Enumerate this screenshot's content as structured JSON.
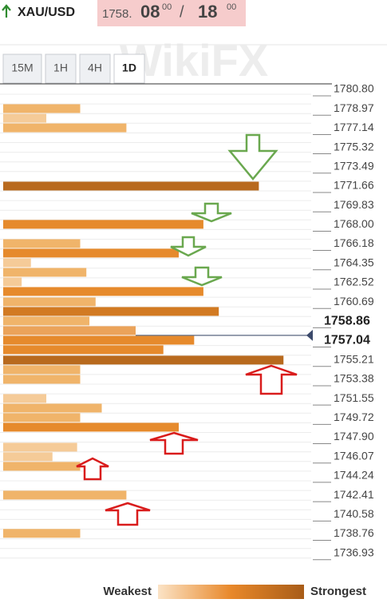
{
  "header": {
    "symbol": "XAU/USD",
    "bid_main": "1758.",
    "bid_big": "08",
    "bid_sup": "00",
    "separator": "/",
    "ask_big": "18",
    "ask_sup": "00"
  },
  "tabs": [
    "15M",
    "1H",
    "4H",
    "1D"
  ],
  "active_tab": 3,
  "watermark": "WikiFX",
  "chart_data": {
    "type": "bar",
    "x": [
      1778.99,
      1778.08,
      1777.17,
      1771.66,
      1768.04,
      1766.22,
      1765.32,
      1764.41,
      1763.5,
      1762.6,
      1761.69,
      1760.71,
      1759.8,
      1758.9,
      1757.99,
      1757.08,
      1756.18,
      1755.2,
      1754.29,
      1753.38,
      1751.57,
      1750.66,
      1749.76,
      1748.85,
      1746.96,
      1746.06,
      1745.15,
      1742.43,
      1738.81
    ],
    "values": [
      25,
      14,
      40,
      83,
      65,
      25,
      57,
      9,
      27,
      6,
      65,
      30,
      70,
      28,
      43,
      62,
      52,
      91,
      25,
      25,
      14,
      32,
      25,
      57,
      24,
      16,
      25,
      40,
      25
    ],
    "colors": [
      "#f0b46a",
      "#f5cb98",
      "#f0b46a",
      "#b86a1e",
      "#e68a2c",
      "#f0b46a",
      "#e68a2c",
      "#f5cb98",
      "#f0b46a",
      "#f5cb98",
      "#e68a2c",
      "#f0b46a",
      "#d27a22",
      "#f0b46a",
      "#eba35a",
      "#e68a2c",
      "#e68a2c",
      "#b86a1e",
      "#f0b46a",
      "#f0b46a",
      "#f5cb98",
      "#f0b46a",
      "#f0b46a",
      "#e68a2c",
      "#f5cb98",
      "#f5cb98",
      "#f0b46a",
      "#f0b46a",
      "#f0b46a"
    ],
    "xlim": [
      0,
      100
    ],
    "ylim": [
      1736.0,
      1781.33
    ],
    "yticks": [
      {
        "value": 1780.8,
        "label": "1780.80"
      },
      1778.97,
      1777.14,
      {
        "value": 1775.32,
        "label": "1775.32"
      },
      1773.49,
      1771.66,
      1769.83,
      {
        "value": 1768,
        "label": "1768.00"
      },
      1766.18,
      1764.35,
      1762.52,
      1760.69,
      {
        "value": 1758.86,
        "label": "1758.86",
        "bold": true
      },
      {
        "value": 1757.04,
        "label": "1757.04",
        "bold": true
      },
      1755.21,
      1753.38,
      1751.55,
      1749.72,
      {
        "value": 1747.9,
        "label": "1747.90"
      },
      1746.07,
      1744.24,
      1742.41,
      1740.58,
      1738.76,
      1736.93
    ],
    "price_marker": 1757.54,
    "legend": {
      "low": "Weakest",
      "high": "Strongest"
    }
  }
}
